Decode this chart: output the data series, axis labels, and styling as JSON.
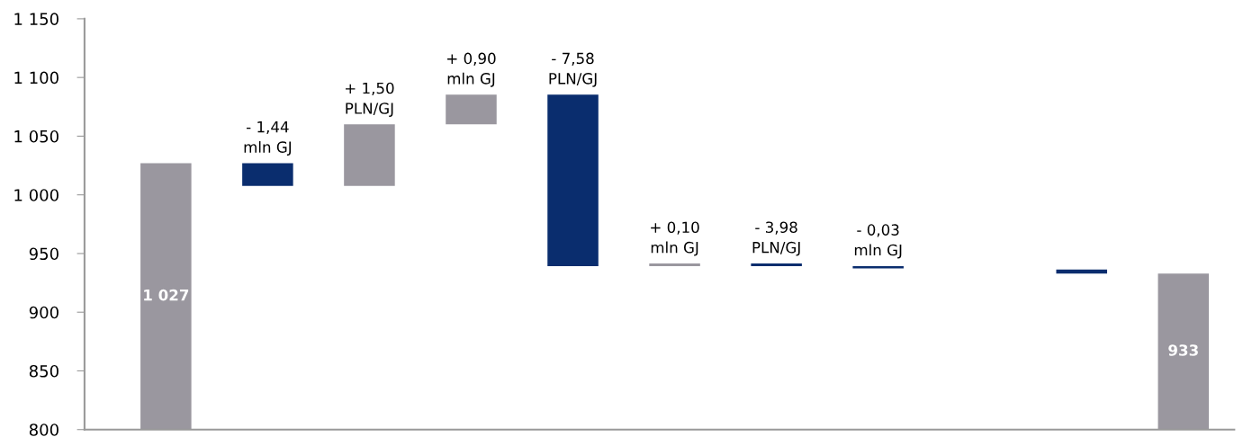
{
  "chart_data": {
    "type": "bar",
    "categories": [
      null,
      null,
      null,
      null,
      null,
      null,
      null,
      null,
      null,
      null,
      null
    ],
    "values": [
      1027,
      19.3,
      52.3,
      25.4,
      146.2,
      2.3,
      2.2,
      2.0,
      null,
      3.4,
      933
    ],
    "base": [
      0,
      1007.7,
      1007.7,
      1060,
      939.2,
      939.2,
      939.3,
      937.3,
      null,
      933,
      0
    ],
    "colors": [
      "#9a979f",
      "#0a2d6e",
      "#9a979f",
      "#9a979f",
      "#0a2d6e",
      "#9a979f",
      "#0a2d6e",
      "#0a2d6e",
      null,
      "#0a2d6e",
      "#9a979f"
    ],
    "value_labels": [
      "1 027",
      null,
      null,
      null,
      null,
      null,
      null,
      null,
      null,
      null,
      "933"
    ],
    "annotations": [
      {
        "text": "- 1,44\nmln GJ",
        "y": 1027
      },
      {
        "text": "+ 1,50\nPLN/GJ",
        "y": 1060
      },
      {
        "text": "+ 0,90\nmln GJ",
        "y": 1085.4
      },
      {
        "text": "- 7,58\nPLN/GJ",
        "y": 1085.4
      },
      {
        "text": "+ 0,10\nmln GJ",
        "y": 941.5
      },
      {
        "text": "- 3,98\nPLN/GJ",
        "y": 941.5
      },
      {
        "text": "- 0,03\nmln GJ",
        "y": 939.3
      }
    ],
    "ylim": [
      800,
      1150
    ],
    "yticks": [
      800,
      850,
      900,
      950,
      {
        "value": 1000,
        "label": "1 000"
      },
      {
        "value": 1050,
        "label": "1 050"
      },
      {
        "value": 1100,
        "label": "1 100"
      },
      {
        "value": 1150,
        "label": "1 150"
      }
    ],
    "grid": false
  }
}
